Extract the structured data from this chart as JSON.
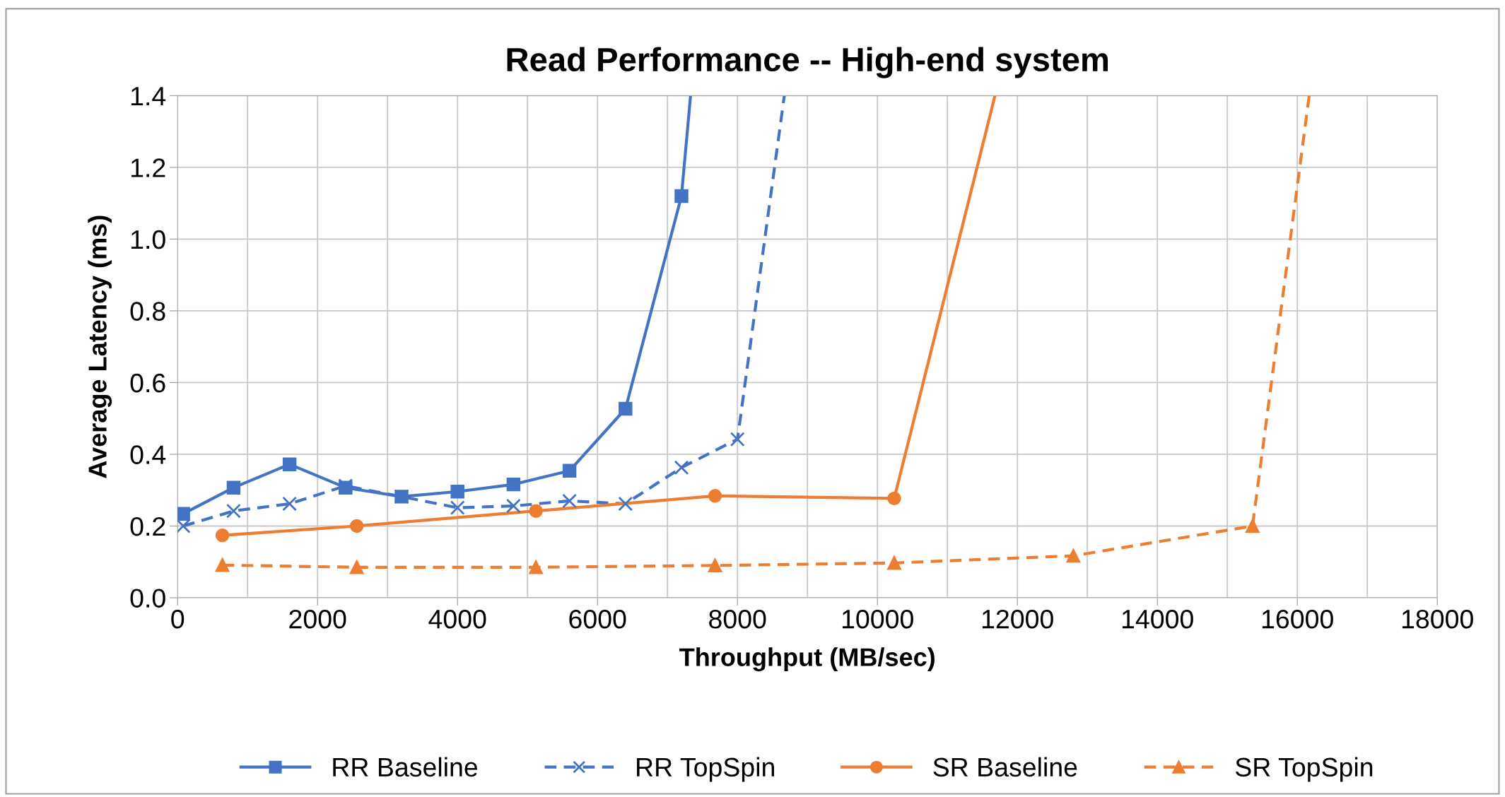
{
  "chart_data": {
    "type": "line",
    "title": "Read Performance -- High-end system",
    "xlabel": "Throughput (MB/sec)",
    "ylabel": "Average Latency (ms)",
    "xlim": [
      0,
      18000
    ],
    "xticks": [
      0,
      2000,
      4000,
      6000,
      8000,
      10000,
      12000,
      14000,
      16000,
      18000
    ],
    "ylim": [
      0,
      1.4
    ],
    "yticks": [
      {
        "value": 0,
        "label": "0.0"
      },
      {
        "value": 0.2,
        "label": "0.2"
      },
      {
        "value": 0.4,
        "label": "0.4"
      },
      {
        "value": 0.6,
        "label": "0.6"
      },
      {
        "value": 0.8,
        "label": "0.8"
      },
      {
        "value": 1.0,
        "label": "1.0"
      },
      {
        "value": 1.2,
        "label": "1.2"
      },
      {
        "value": 1.4,
        "label": "1.4"
      }
    ],
    "grid": true,
    "legend": "bottom",
    "series": [
      {
        "name": "RR Baseline",
        "color": "#4472c4",
        "marker": "square",
        "line_style": "solid",
        "x": [
          80,
          800,
          1600,
          2400,
          3200,
          4000,
          4800,
          5600,
          6400,
          7200,
          7330
        ],
        "values": [
          0.234,
          0.307,
          0.372,
          0.307,
          0.282,
          0.296,
          0.316,
          0.354,
          0.527,
          1.12,
          1.4
        ]
      },
      {
        "name": "RR TopSpin",
        "color": "#4472c4",
        "marker": "cross",
        "line_style": "dashed",
        "x": [
          80,
          800,
          1600,
          2400,
          3200,
          4000,
          4800,
          5600,
          6400,
          7200,
          8000,
          8670
        ],
        "values": [
          0.2,
          0.242,
          0.262,
          0.312,
          0.282,
          0.251,
          0.256,
          0.27,
          0.262,
          0.363,
          0.442,
          1.4
        ]
      },
      {
        "name": "SR Baseline",
        "color": "#ed7d31",
        "marker": "circle",
        "line_style": "solid",
        "x": [
          640,
          2560,
          5120,
          7680,
          10240,
          11680
        ],
        "values": [
          0.174,
          0.2,
          0.242,
          0.284,
          0.277,
          1.4
        ]
      },
      {
        "name": "SR TopSpin",
        "color": "#ed7d31",
        "marker": "triangle",
        "line_style": "dashed",
        "x": [
          640,
          2560,
          5120,
          7680,
          10240,
          12800,
          15360,
          16170
        ],
        "values": [
          0.091,
          0.085,
          0.085,
          0.09,
          0.097,
          0.117,
          0.2,
          1.4
        ]
      }
    ]
  }
}
